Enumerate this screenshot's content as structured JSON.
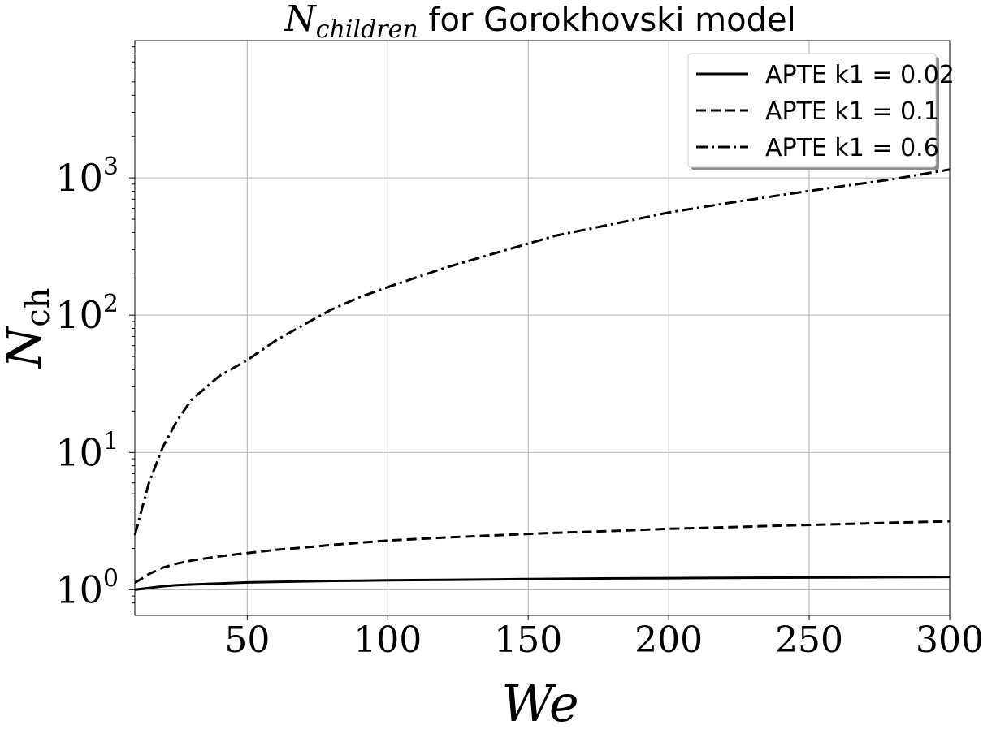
{
  "chart_data": {
    "type": "line",
    "title": {
      "math_base": "N",
      "math_sub": "children",
      "text": " for Gorokhovski model"
    },
    "xlabel": "We",
    "ylabel": {
      "base": "N",
      "sub": "ch"
    },
    "xlim": [
      10,
      300
    ],
    "ylim": [
      0.65,
      10000
    ],
    "yscale": "log",
    "grid": true,
    "legend_position": "top-right",
    "x_ticks": [
      {
        "value": 50,
        "label": "50"
      },
      {
        "value": 100,
        "label": "100"
      },
      {
        "value": 150,
        "label": "150"
      },
      {
        "value": 200,
        "label": "200"
      },
      {
        "value": 250,
        "label": "250"
      },
      {
        "value": 300,
        "label": "300"
      }
    ],
    "y_ticks": [
      {
        "value": 1,
        "base": "10",
        "exp": "0"
      },
      {
        "value": 10,
        "base": "10",
        "exp": "1"
      },
      {
        "value": 100,
        "base": "10",
        "exp": "2"
      },
      {
        "value": 1000,
        "base": "10",
        "exp": "3"
      }
    ],
    "x": [
      10,
      15,
      20,
      25,
      30,
      40,
      50,
      60,
      70,
      80,
      90,
      100,
      120,
      140,
      160,
      180,
      200,
      220,
      240,
      260,
      280,
      300
    ],
    "series": [
      {
        "name": "APTE k1 = 0.02",
        "dash": "solid",
        "color": "#000000",
        "values": [
          1.0,
          1.03,
          1.06,
          1.08,
          1.09,
          1.11,
          1.13,
          1.14,
          1.15,
          1.16,
          1.165,
          1.17,
          1.18,
          1.19,
          1.2,
          1.21,
          1.215,
          1.22,
          1.225,
          1.23,
          1.235,
          1.24
        ]
      },
      {
        "name": "APTE k1 = 0.1",
        "dash": "dashed",
        "color": "#000000",
        "values": [
          1.12,
          1.3,
          1.45,
          1.55,
          1.63,
          1.75,
          1.85,
          1.95,
          2.03,
          2.12,
          2.2,
          2.28,
          2.4,
          2.5,
          2.6,
          2.68,
          2.78,
          2.85,
          2.93,
          3.0,
          3.08,
          3.15
        ]
      },
      {
        "name": "APTE k1 = 0.6",
        "dash": "dashdot",
        "color": "#000000",
        "values": [
          2.5,
          6.0,
          11.0,
          17.0,
          24.0,
          36.0,
          47.0,
          65.0,
          85.0,
          110.0,
          135.0,
          160.0,
          220.0,
          290.0,
          380.0,
          460.0,
          560.0,
          650.0,
          750.0,
          860.0,
          980.0,
          1150.0
        ]
      }
    ]
  }
}
